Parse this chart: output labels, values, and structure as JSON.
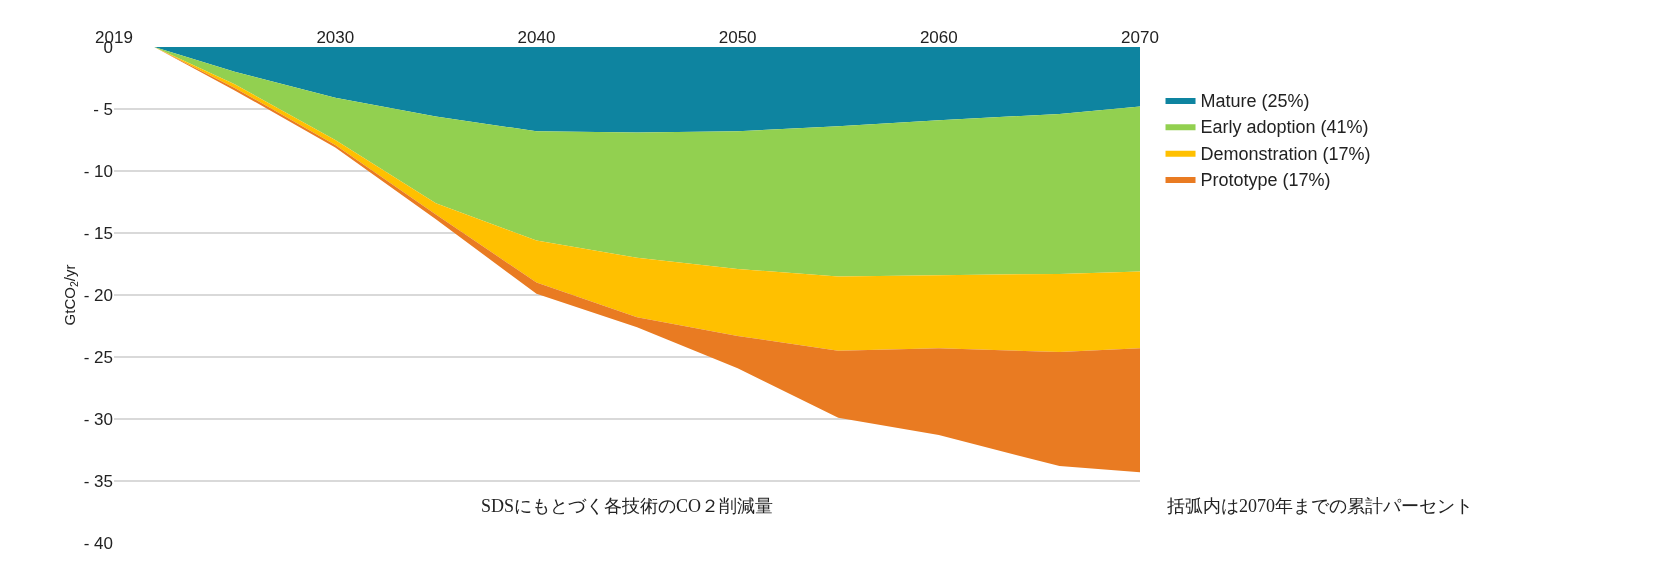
{
  "chart_data": {
    "type": "area",
    "stacked": true,
    "ylabel": "GtCO$_{2}$/yr",
    "x": [
      2019,
      2021,
      2025,
      2030,
      2035,
      2040,
      2045,
      2050,
      2055,
      2060,
      2066,
      2070
    ],
    "series": [
      {
        "name": "Mature (25%)",
        "color": "#0e84a0",
        "values": [
          0,
          0,
          -2.0,
          -4.1,
          -5.6,
          -6.8,
          -6.9,
          -6.8,
          -6.4,
          -5.9,
          -5.4,
          -4.8
        ]
      },
      {
        "name": "Early adoption (41%)",
        "color": "#92d050",
        "values": [
          0,
          0,
          -1.0,
          -3.4,
          -7.0,
          -8.8,
          -10.1,
          -11.1,
          -12.1,
          -12.5,
          -12.9,
          -13.3
        ]
      },
      {
        "name": "Demonstration (17%)",
        "color": "#ffc000",
        "values": [
          0,
          0,
          -0.3,
          -0.4,
          -0.9,
          -3.4,
          -4.8,
          -5.4,
          -6.0,
          -5.9,
          -6.3,
          -6.2
        ]
      },
      {
        "name": "Prototype (17%)",
        "color": "#e97b22",
        "values": [
          0,
          0,
          -0.2,
          -0.2,
          -0.4,
          -0.9,
          -0.8,
          -2.6,
          -5.4,
          -7.0,
          -9.2,
          -10.0
        ]
      }
    ],
    "xlim": [
      2019,
      2070
    ],
    "xticks": [
      2019,
      2030,
      2040,
      2050,
      2060,
      2070
    ],
    "ylim": [
      -40,
      0
    ],
    "yticks": [
      0,
      {
        "value": -5,
        "label": "- 5"
      },
      {
        "value": -10,
        "label": "- 10"
      },
      {
        "value": -15,
        "label": "- 15"
      },
      {
        "value": -20,
        "label": "- 20"
      },
      {
        "value": -25,
        "label": "- 25"
      },
      {
        "value": -30,
        "label": "- 30"
      },
      {
        "value": -35,
        "label": "- 35"
      },
      {
        "value": -40,
        "label": "- 40"
      }
    ],
    "grid": "y",
    "legend": "right",
    "annotations": [
      "SDSにもとづく各技術のCO２削減量",
      "括弧内は2070年までの累計パーセント"
    ]
  }
}
